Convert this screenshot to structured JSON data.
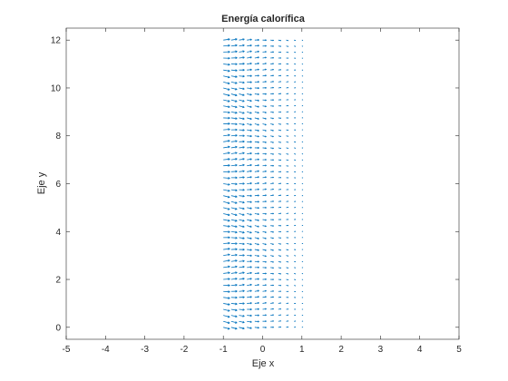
{
  "chart_data": {
    "type": "quiver",
    "title": "Energía calorífica",
    "xlabel": "Eje x",
    "ylabel": "Eje y",
    "xlim": [
      -5,
      5
    ],
    "ylim": [
      -0.5,
      12.5
    ],
    "xticks": [
      "-5",
      "-4",
      "-3",
      "-2",
      "-1",
      "0",
      "1",
      "2",
      "3",
      "4",
      "5"
    ],
    "yticks": [
      "0",
      "2",
      "4",
      "6",
      "8",
      "10",
      "12"
    ],
    "grid": false,
    "legend": "none",
    "series": [
      {
        "color": "#0072bd",
        "x_range": [
          -1,
          1
        ],
        "x_step": 0.2,
        "y_range": [
          0,
          12
        ],
        "y_step": 0.25,
        "field": "horizontal heat-flux arrows, slightly tilted, magnitude decreasing toward x = 1"
      }
    ]
  }
}
